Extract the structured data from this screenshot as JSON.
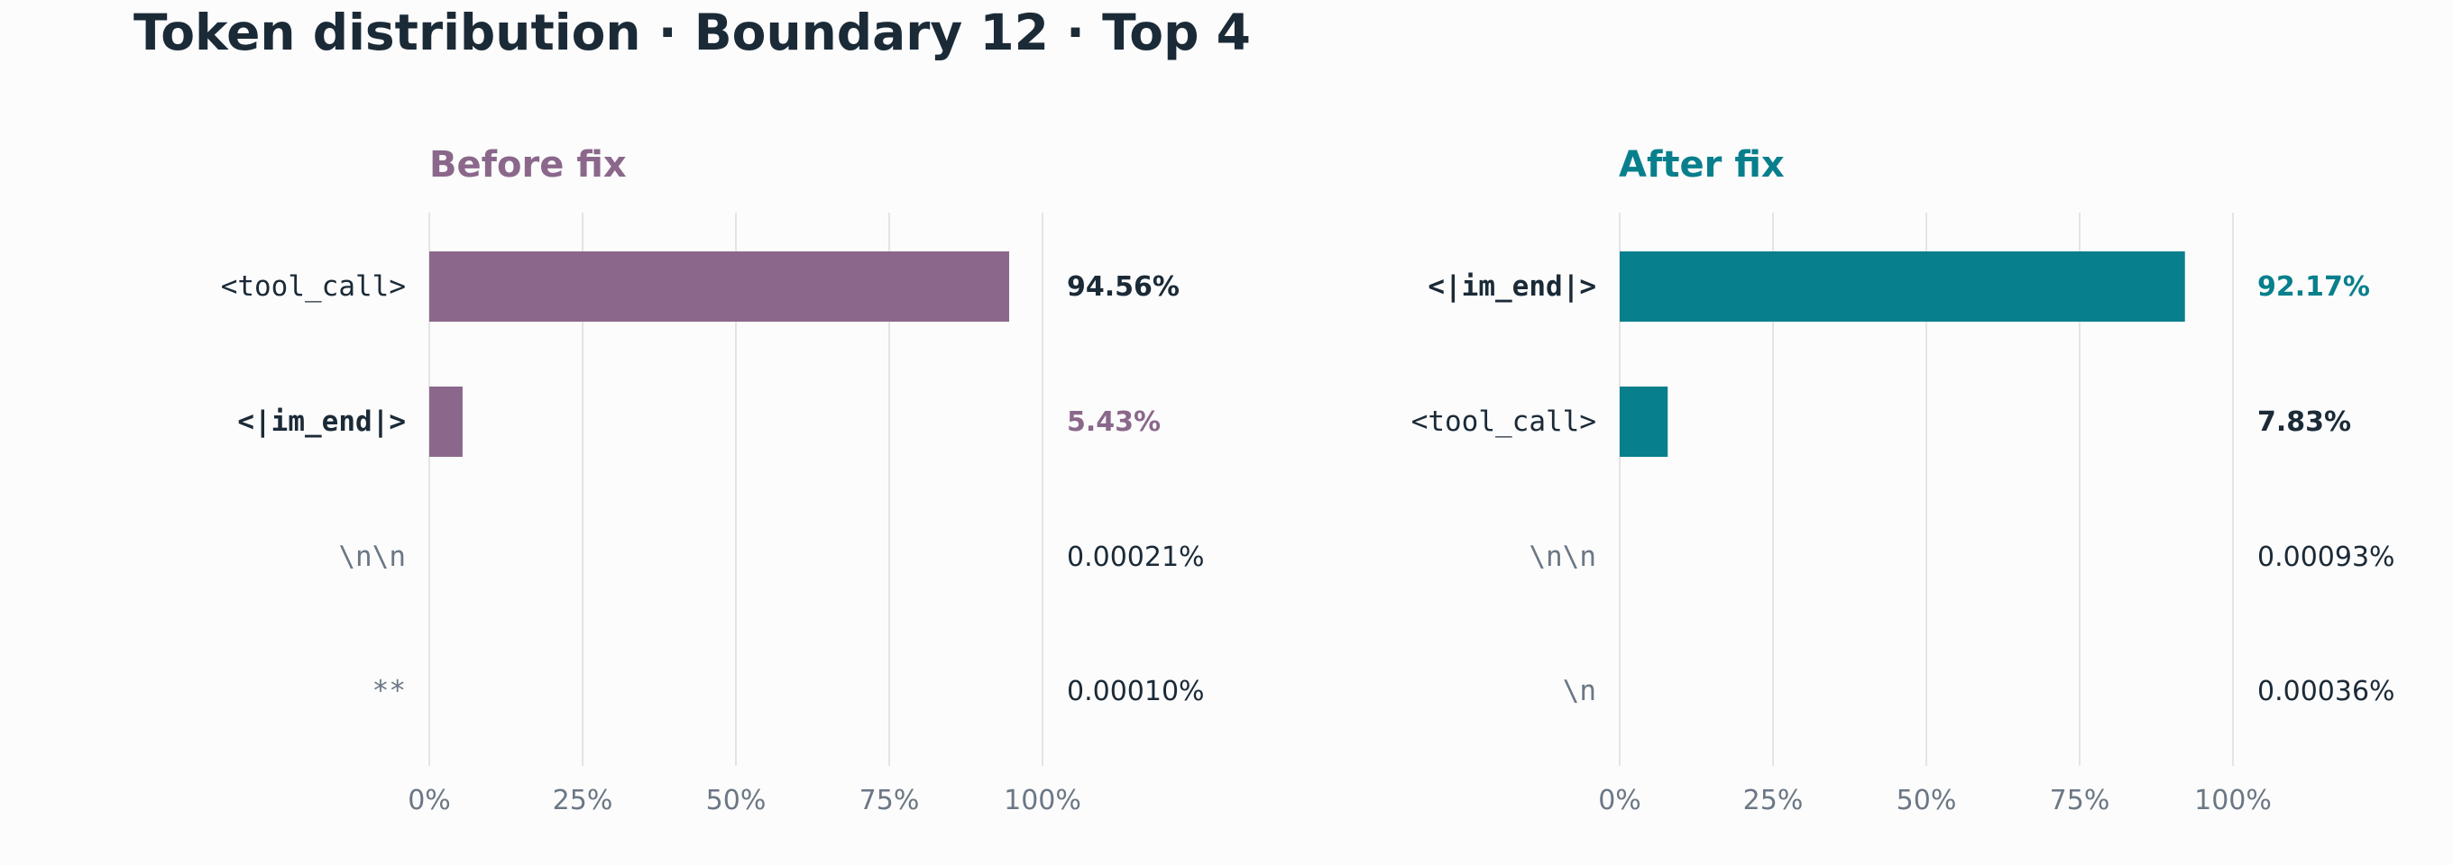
{
  "page": {
    "title": "Token distribution · Boundary 12 · Top 4"
  },
  "colors": {
    "background": "#fcfcfc",
    "title": "#1b2a37",
    "gridline": "#e4e4e4",
    "tick_label": "#6b7785",
    "dark_text": "#1b2a37",
    "muted_token": "#6b7785",
    "before_accent": "#8b688b",
    "after_accent": "#087f8c"
  },
  "chart_data": [
    {
      "type": "bar",
      "orientation": "horizontal",
      "title": "Before fix",
      "title_color": "#8b688b",
      "bar_color": "#8b688b",
      "xlim": [
        0,
        100
      ],
      "ticks": [
        0,
        25,
        50,
        75,
        100
      ],
      "tick_labels": [
        "0%",
        "25%",
        "50%",
        "75%",
        "100%"
      ],
      "grid": true,
      "categories": [
        "<tool_call>",
        "<|im_end|>",
        "\\n\\n",
        "**"
      ],
      "values": [
        94.56,
        5.43,
        0.00021,
        0.0001
      ],
      "value_labels": [
        "94.56%",
        "5.43%",
        "0.00021%",
        "0.00010%"
      ],
      "label_styles": [
        {
          "bold": false,
          "color": "#1b2a37"
        },
        {
          "bold": true,
          "color": "#1b2a37"
        },
        {
          "bold": false,
          "color": "#6b7785"
        },
        {
          "bold": false,
          "color": "#6b7785"
        }
      ],
      "value_styles": [
        {
          "bold": true,
          "color": "#1b2a37"
        },
        {
          "bold": true,
          "color": "#8b688b"
        },
        {
          "bold": false,
          "color": "#1b2a37"
        },
        {
          "bold": false,
          "color": "#1b2a37"
        }
      ]
    },
    {
      "type": "bar",
      "orientation": "horizontal",
      "title": "After fix",
      "title_color": "#087f8c",
      "bar_color": "#087f8c",
      "xlim": [
        0,
        100
      ],
      "ticks": [
        0,
        25,
        50,
        75,
        100
      ],
      "tick_labels": [
        "0%",
        "25%",
        "50%",
        "75%",
        "100%"
      ],
      "grid": true,
      "categories": [
        "<|im_end|>",
        "<tool_call>",
        "\\n\\n",
        "\\n"
      ],
      "values": [
        92.17,
        7.83,
        0.00093,
        0.00036
      ],
      "value_labels": [
        "92.17%",
        "7.83%",
        "0.00093%",
        "0.00036%"
      ],
      "label_styles": [
        {
          "bold": true,
          "color": "#1b2a37"
        },
        {
          "bold": false,
          "color": "#1b2a37"
        },
        {
          "bold": false,
          "color": "#6b7785"
        },
        {
          "bold": false,
          "color": "#6b7785"
        }
      ],
      "value_styles": [
        {
          "bold": true,
          "color": "#087f8c"
        },
        {
          "bold": true,
          "color": "#1b2a37"
        },
        {
          "bold": false,
          "color": "#1b2a37"
        },
        {
          "bold": false,
          "color": "#1b2a37"
        }
      ]
    }
  ]
}
